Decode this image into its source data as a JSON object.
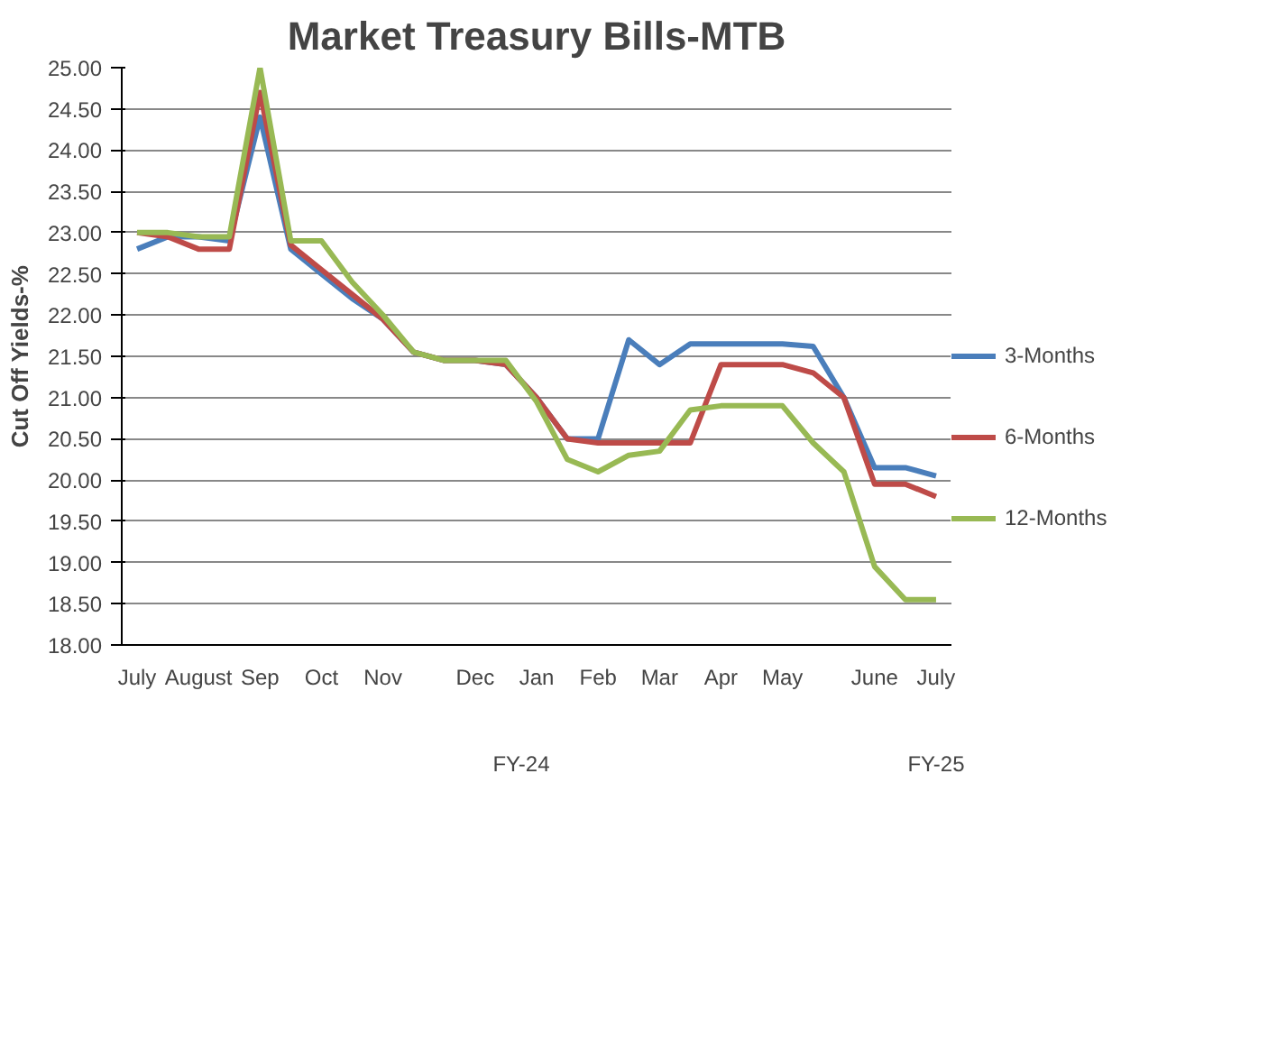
{
  "chart_data": {
    "type": "line",
    "title": "Market Treasury Bills-MTB",
    "ylabel": "Cut Off Yields-%",
    "categories": [
      "July",
      null,
      "August",
      null,
      "Sep",
      null,
      "Oct",
      null,
      "Nov",
      null,
      null,
      "Dec",
      null,
      "Jan",
      null,
      "Feb",
      null,
      "Mar",
      null,
      "Apr",
      null,
      "May",
      null,
      null,
      "June",
      null,
      "July"
    ],
    "series": [
      {
        "name": "3-Months",
        "color": "#4a7ebb",
        "values": [
          22.8,
          22.95,
          22.95,
          22.9,
          24.4,
          22.8,
          22.5,
          22.2,
          21.95,
          21.55,
          21.45,
          21.45,
          21.4,
          21.0,
          20.5,
          20.5,
          21.7,
          21.4,
          21.65,
          21.65,
          21.65,
          21.65,
          21.62,
          21.0,
          20.15,
          20.15,
          20.05
        ]
      },
      {
        "name": "6-Months",
        "color": "#be4b48",
        "values": [
          23.0,
          22.95,
          22.8,
          22.8,
          24.7,
          22.85,
          22.55,
          22.25,
          21.95,
          21.55,
          21.45,
          21.45,
          21.4,
          21.0,
          20.5,
          20.45,
          20.45,
          20.45,
          20.45,
          21.4,
          21.4,
          21.4,
          21.3,
          21.0,
          19.95,
          19.95,
          19.8
        ]
      },
      {
        "name": "12-Months",
        "color": "#98b954",
        "values": [
          23.0,
          23.0,
          22.95,
          22.95,
          25.0,
          22.9,
          22.9,
          22.4,
          22.0,
          21.55,
          21.45,
          21.45,
          21.45,
          20.95,
          20.25,
          20.1,
          20.3,
          20.35,
          20.85,
          20.9,
          20.9,
          20.9,
          20.45,
          20.1,
          18.95,
          18.55,
          18.55
        ]
      }
    ],
    "annotations": [
      "FY-24",
      "FY-25"
    ],
    "ylim": [
      18,
      25
    ],
    "yticks": [
      {
        "value": 18,
        "label": "18.00"
      },
      {
        "value": 18.5,
        "label": "18.50"
      },
      {
        "value": 19,
        "label": "19.00"
      },
      {
        "value": 19.5,
        "label": "19.50"
      },
      {
        "value": 20,
        "label": "20.00"
      },
      {
        "value": 20.5,
        "label": "20.50"
      },
      {
        "value": 21,
        "label": "21.00"
      },
      {
        "value": 21.5,
        "label": "21.50"
      },
      {
        "value": 22,
        "label": "22.00"
      },
      {
        "value": 22.5,
        "label": "22.50"
      },
      {
        "value": 23,
        "label": "23.00"
      },
      {
        "value": 23.5,
        "label": "23.50"
      },
      {
        "value": 24,
        "label": "24.00"
      },
      {
        "value": 24.5,
        "label": "24.50"
      },
      {
        "value": 25,
        "label": "25.00"
      }
    ],
    "grid": "y",
    "legend": "right",
    "marker": "none",
    "line_style": "solid"
  }
}
